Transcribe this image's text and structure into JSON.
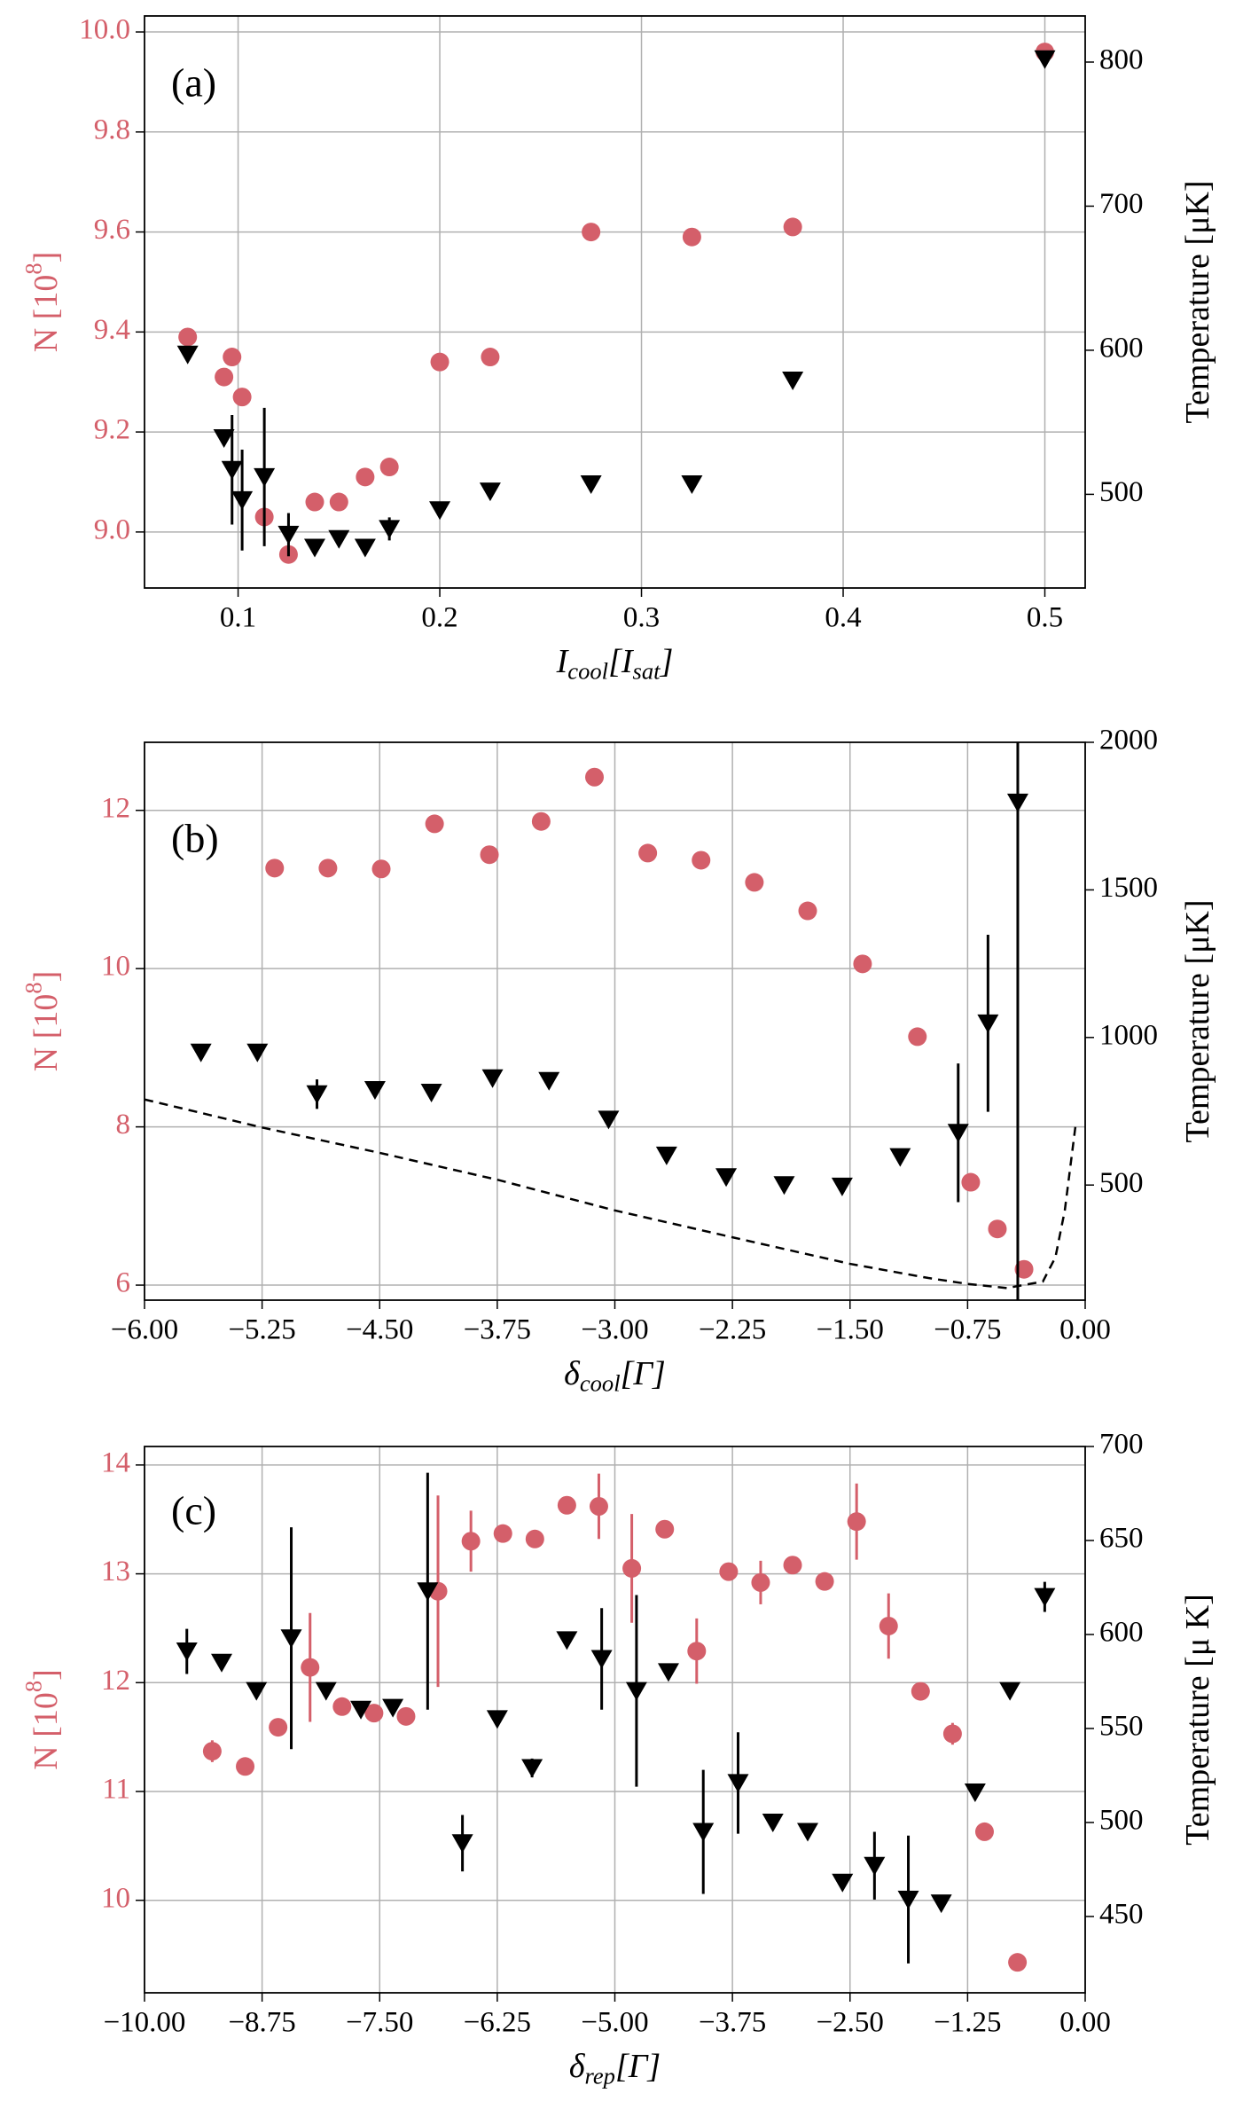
{
  "chart_data": [
    {
      "type": "scatter",
      "annotation": "(a)",
      "x_label": [
        {
          "t": "I"
        },
        {
          "t": "cool",
          "sub": true
        },
        {
          "t": "[I"
        },
        {
          "t": "sat",
          "sub": true
        },
        {
          "t": "]"
        }
      ],
      "y_label": [
        {
          "t": "N [10"
        },
        {
          "t": "8",
          "sup": true
        },
        {
          "t": "]"
        }
      ],
      "y2_label": [
        {
          "t": "Temperature [μK]"
        }
      ],
      "xlim": [
        0.0536,
        0.52
      ],
      "xticks": [
        0.1,
        0.2,
        0.3,
        0.4,
        0.5
      ],
      "ylim": [
        8.888,
        10.032
      ],
      "yticks": [
        {
          "value": 9,
          "label": "9.0"
        },
        9.2,
        9.4,
        9.6,
        9.8,
        {
          "value": 10,
          "label": "10.0"
        }
      ],
      "y2lim": [
        435,
        832
      ],
      "y2ticks": [
        500,
        600,
        700,
        800
      ],
      "grid": true,
      "series": [
        {
          "color": "#d45f6a",
          "marker": "circle",
          "axis": "y",
          "x": [
            0.075,
            0.093,
            0.097,
            0.102,
            0.113,
            0.125,
            0.138,
            0.15,
            0.163,
            0.175,
            0.2,
            0.225,
            0.275,
            0.325,
            0.375,
            0.5
          ],
          "values": [
            9.39,
            9.31,
            9.35,
            9.27,
            9.03,
            8.955,
            9.06,
            9.06,
            9.11,
            9.13,
            9.34,
            9.35,
            9.6,
            9.59,
            9.61,
            9.96
          ]
        },
        {
          "color": "#000000",
          "marker": "triangle_down",
          "axis": "y2",
          "x": [
            0.075,
            0.093,
            0.097,
            0.102,
            0.113,
            0.125,
            0.138,
            0.15,
            0.163,
            0.175,
            0.2,
            0.225,
            0.275,
            0.325,
            0.375,
            0.5
          ],
          "values": [
            597,
            539,
            517,
            496,
            512,
            472,
            463,
            469,
            463,
            476,
            489,
            502,
            507,
            507,
            579,
            802
          ],
          "errors": [
            null,
            null,
            38,
            35,
            48,
            15,
            null,
            null,
            null,
            8,
            null,
            null,
            null,
            null,
            null,
            null
          ]
        }
      ]
    },
    {
      "type": "scatter",
      "annotation": "(b)",
      "x_label": [
        {
          "t": "δ"
        },
        {
          "t": "cool",
          "sub": true
        },
        {
          "t": "[Γ]"
        }
      ],
      "y_label": [
        {
          "t": "N [10"
        },
        {
          "t": "8",
          "sup": true
        },
        {
          "t": "]"
        }
      ],
      "y2_label": [
        {
          "t": "Temperature [μK]"
        }
      ],
      "xlim": [
        -6,
        0
      ],
      "xticks": [
        {
          "value": -6,
          "label": "−6.00"
        },
        {
          "value": -5.25,
          "label": "−5.25"
        },
        {
          "value": -4.5,
          "label": "−4.50"
        },
        {
          "value": -3.75,
          "label": "−3.75"
        },
        {
          "value": -3,
          "label": "−3.00"
        },
        {
          "value": -2.25,
          "label": "−2.25"
        },
        {
          "value": -1.5,
          "label": "−1.50"
        },
        {
          "value": -0.75,
          "label": "−0.75"
        },
        {
          "value": 0,
          "label": "0.00"
        }
      ],
      "ylim": [
        5.81,
        12.86
      ],
      "yticks": [
        6,
        8,
        10,
        12
      ],
      "y2lim": [
        110,
        2000
      ],
      "y2ticks": [
        500,
        1000,
        1500,
        2000
      ],
      "grid": true,
      "series": [
        {
          "color": "#d45f6a",
          "marker": "circle",
          "axis": "y",
          "x": [
            -5.17,
            -4.83,
            -4.49,
            -4.15,
            -3.8,
            -3.47,
            -3.13,
            -2.79,
            -2.45,
            -2.11,
            -1.77,
            -1.42,
            -1.07,
            -0.73,
            -0.56,
            -0.39
          ],
          "values": [
            11.27,
            11.27,
            11.26,
            11.83,
            11.44,
            11.86,
            12.42,
            11.46,
            11.37,
            11.09,
            10.73,
            10.06,
            9.14,
            7.3,
            6.71,
            6.2
          ]
        },
        {
          "color": "#000000",
          "marker": "triangle_down",
          "axis": "y2",
          "x": [
            -5.64,
            -5.28,
            -4.9,
            -4.53,
            -4.17,
            -3.78,
            -3.42,
            -3.04,
            -2.67,
            -2.29,
            -1.92,
            -1.55,
            -1.18,
            -0.81,
            -0.62,
            -0.43
          ],
          "values": [
            949,
            949,
            808,
            822,
            813,
            862,
            853,
            722,
            600,
            527,
            500,
            495,
            595,
            677,
            1048,
            1796
          ],
          "errors": [
            null,
            20,
            50,
            20,
            null,
            null,
            null,
            null,
            null,
            null,
            null,
            null,
            null,
            235,
            300,
            1700
          ]
        },
        {
          "color": "#000000",
          "marker": "none",
          "linestyle": "dashed",
          "axis": "y2",
          "x": [
            -6,
            -5.25,
            -4.5,
            -3.75,
            -3,
            -2.25,
            -1.5,
            -1,
            -0.75,
            -0.5,
            -0.27,
            -0.19,
            -0.13,
            -0.06
          ],
          "values": [
            790,
            695,
            609,
            518,
            414,
            323,
            233,
            185,
            165,
            151,
            173,
            255,
            414,
            708
          ]
        }
      ]
    },
    {
      "type": "scatter",
      "annotation": "(c)",
      "x_label": [
        {
          "t": "δ"
        },
        {
          "t": "rep",
          "sub": true
        },
        {
          "t": "[Γ]"
        }
      ],
      "y_label": [
        {
          "t": "N [10"
        },
        {
          "t": "8",
          "sup": true
        },
        {
          "t": "]"
        }
      ],
      "y2_label": [
        {
          "t": "Temperature [μ K]"
        }
      ],
      "xlim": [
        -10,
        0
      ],
      "xticks": [
        {
          "value": -10,
          "label": "−10.00"
        },
        {
          "value": -8.75,
          "label": "−8.75"
        },
        {
          "value": -7.5,
          "label": "−7.50"
        },
        {
          "value": -6.25,
          "label": "−6.25"
        },
        {
          "value": -5,
          "label": "−5.00"
        },
        {
          "value": -3.75,
          "label": "−3.75"
        },
        {
          "value": -2.5,
          "label": "−2.50"
        },
        {
          "value": -1.25,
          "label": "−1.25"
        },
        {
          "value": 0,
          "label": "0.00"
        }
      ],
      "ylim": [
        9.15,
        14.17
      ],
      "yticks": [
        10,
        11,
        12,
        13,
        14
      ],
      "y2lim": [
        409.4,
        700
      ],
      "y2ticks": [
        450,
        500,
        550,
        600,
        650,
        700
      ],
      "grid": true,
      "series": [
        {
          "color": "#d45f6a",
          "marker": "circle",
          "axis": "y",
          "x": [
            -9.28,
            -8.93,
            -8.58,
            -8.24,
            -7.9,
            -7.56,
            -7.22,
            -6.88,
            -6.53,
            -6.19,
            -5.85,
            -5.51,
            -5.17,
            -4.82,
            -4.47,
            -4.13,
            -3.79,
            -3.45,
            -3.11,
            -2.77,
            -2.43,
            -2.09,
            -1.75,
            -1.41,
            -1.07,
            -0.72
          ],
          "values": [
            11.37,
            11.23,
            11.59,
            12.14,
            11.78,
            11.72,
            11.69,
            12.84,
            13.3,
            13.37,
            13.32,
            13.63,
            13.62,
            13.05,
            13.41,
            12.29,
            13.02,
            12.92,
            13.08,
            12.93,
            13.48,
            12.52,
            11.92,
            11.53,
            10.63,
            9.43
          ],
          "errors": [
            0.1,
            null,
            null,
            0.5,
            null,
            null,
            null,
            0.88,
            0.28,
            0.05,
            0.07,
            null,
            0.3,
            0.5,
            null,
            0.3,
            null,
            0.2,
            null,
            null,
            0.35,
            0.3,
            null,
            0.1,
            null,
            null
          ]
        },
        {
          "color": "#000000",
          "marker": "triangle_down",
          "axis": "y2",
          "x": [
            -9.55,
            -9.18,
            -8.81,
            -8.44,
            -8.07,
            -7.7,
            -7.36,
            -6.99,
            -6.62,
            -6.25,
            -5.88,
            -5.51,
            -5.14,
            -4.77,
            -4.43,
            -4.06,
            -3.69,
            -3.32,
            -2.95,
            -2.58,
            -2.24,
            -1.88,
            -1.53,
            -1.17,
            -0.8,
            -0.43
          ],
          "values": [
            591,
            585,
            570,
            598,
            570,
            560,
            561,
            623,
            489,
            555,
            529,
            597,
            587,
            570,
            580,
            495,
            521,
            500,
            495,
            468,
            477,
            459,
            457,
            516,
            570,
            620
          ],
          "errors": [
            12,
            null,
            null,
            59,
            null,
            null,
            null,
            63,
            15,
            null,
            5,
            null,
            27,
            51,
            null,
            33,
            27,
            null,
            null,
            null,
            18,
            34,
            null,
            4,
            null,
            8
          ]
        }
      ]
    }
  ]
}
